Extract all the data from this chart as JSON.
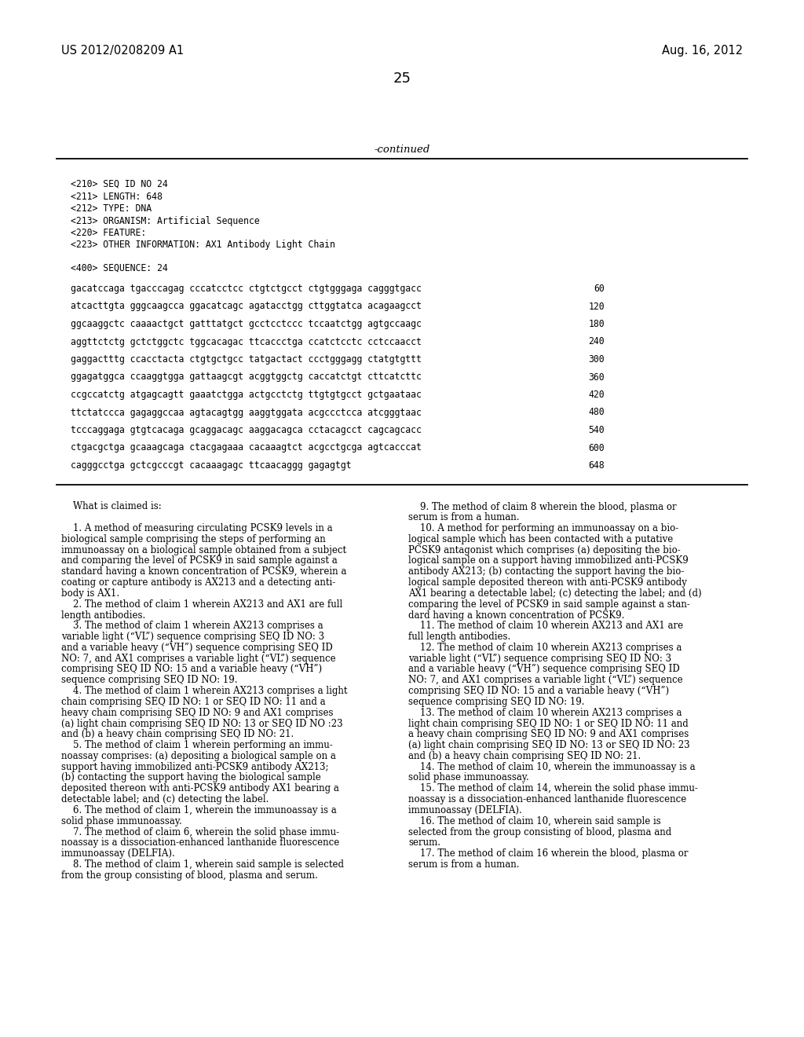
{
  "bg_color": "#ffffff",
  "header_left": "US 2012/0208209 A1",
  "header_right": "Aug. 16, 2012",
  "page_number": "25",
  "continued_label": "-continued",
  "seq_header_lines": [
    "<210> SEQ ID NO 24",
    "<211> LENGTH: 648",
    "<212> TYPE: DNA",
    "<213> ORGANISM: Artificial Sequence",
    "<220> FEATURE:",
    "<223> OTHER INFORMATION: AX1 Antibody Light Chain"
  ],
  "seq_label": "<400> SEQUENCE: 24",
  "sequence_lines": [
    [
      "gacatccaga tgacccagag cccatcctcc ctgtctgcct ctgtgggaga cagggtgacc",
      "60"
    ],
    [
      "atcacttgta gggcaagcca ggacatcagc agatacctgg cttggtatca acagaagcct",
      "120"
    ],
    [
      "ggcaaggctc caaaactgct gatttatgct gcctcctccc tccaatctgg agtgccaagc",
      "180"
    ],
    [
      "aggttctctg gctctggctc tggcacagac ttcaccctga ccatctcctc cctccaacct",
      "240"
    ],
    [
      "gaggactttg ccacctacta ctgtgctgcc tatgactact ccctgggagg ctatgtgttt",
      "300"
    ],
    [
      "ggagatggca ccaaggtgga gattaagcgt acggtggctg caccatctgt cttcatcttc",
      "360"
    ],
    [
      "ccgccatctg atgagcagtt gaaatctgga actgcctctg ttgtgtgcct gctgaataac",
      "420"
    ],
    [
      "ttctatccca gagaggccaa agtacagtgg aaggtggata acgccctcca atcgggtaac",
      "480"
    ],
    [
      "tcccaggaga gtgtcacaga gcaggacagc aaggacagca cctacagcct cagcagcacc",
      "540"
    ],
    [
      "ctgacgctga gcaaagcaga ctacgagaaa cacaaagtct acgcctgcga agtcacccat",
      "600"
    ],
    [
      "cagggcctga gctcgcccgt cacaaagagc ttcaacaggg gagagtgt",
      "648"
    ]
  ],
  "claims_col1": [
    [
      "    What is claimed is:",
      false
    ],
    [
      "    ",
      false
    ],
    [
      "    1. A method of measuring circulating PCSK9 levels in a",
      true
    ],
    [
      "biological sample comprising the steps of performing an",
      false
    ],
    [
      "immunoassay on a biological sample obtained from a subject",
      false
    ],
    [
      "and comparing the level of PCSK9 in said sample against a",
      false
    ],
    [
      "standard having a known concentration of PCSK9, wherein a",
      false
    ],
    [
      "coating or capture antibody is AX213 and a detecting anti-",
      false
    ],
    [
      "body is AX1.",
      false
    ],
    [
      "    2. The method of claim 1 wherein AX213 and AX1 are full",
      true
    ],
    [
      "length antibodies.",
      false
    ],
    [
      "    3. The method of claim 1 wherein AX213 comprises a",
      true
    ],
    [
      "variable light (“VL”) sequence comprising SEQ ID NO: 3",
      false
    ],
    [
      "and a variable heavy (“VH”) sequence comprising SEQ ID",
      false
    ],
    [
      "NO: 7, and AX1 comprises a variable light (“VL”) sequence",
      false
    ],
    [
      "comprising SEQ ID NO: 15 and a variable heavy (“VH”)",
      false
    ],
    [
      "sequence comprising SEQ ID NO: 19.",
      false
    ],
    [
      "    4. The method of claim 1 wherein AX213 comprises a light",
      true
    ],
    [
      "chain comprising SEQ ID NO: 1 or SEQ ID NO: 11 and a",
      false
    ],
    [
      "heavy chain comprising SEQ ID NO: 9 and AX1 comprises",
      false
    ],
    [
      "(a) light chain comprising SEQ ID NO: 13 or SEQ ID NO :23",
      false
    ],
    [
      "and (b) a heavy chain comprising SEQ ID NO: 21.",
      false
    ],
    [
      "    5. The method of claim 1 wherein performing an immu-",
      true
    ],
    [
      "noassay comprises: (a) depositing a biological sample on a",
      false
    ],
    [
      "support having immobilized anti-PCSK9 antibody AX213;",
      false
    ],
    [
      "(b) contacting the support having the biological sample",
      false
    ],
    [
      "deposited thereon with anti-PCSK9 antibody AX1 bearing a",
      false
    ],
    [
      "detectable label; and (c) detecting the label.",
      false
    ],
    [
      "    6. The method of claim 1, wherein the immunoassay is a",
      true
    ],
    [
      "solid phase immunoassay.",
      false
    ],
    [
      "    7. The method of claim 6, wherein the solid phase immu-",
      true
    ],
    [
      "noassay is a dissociation-enhanced lanthanide fluorescence",
      false
    ],
    [
      "immunoassay (DELFIA).",
      false
    ],
    [
      "    8. The method of claim 1, wherein said sample is selected",
      true
    ],
    [
      "from the group consisting of blood, plasma and serum.",
      false
    ]
  ],
  "claims_col2": [
    [
      "    9. The method of claim 8 wherein the blood, plasma or",
      true
    ],
    [
      "serum is from a human.",
      false
    ],
    [
      "    10. A method for performing an immunoassay on a bio-",
      true
    ],
    [
      "logical sample which has been contacted with a putative",
      false
    ],
    [
      "PCSK9 antagonist which comprises (a) depositing the bio-",
      false
    ],
    [
      "logical sample on a support having immobilized anti-PCSK9",
      false
    ],
    [
      "antibody AX213; (b) contacting the support having the bio-",
      false
    ],
    [
      "logical sample deposited thereon with anti-PCSK9 antibody",
      false
    ],
    [
      "AX1 bearing a detectable label; (c) detecting the label; and (d)",
      false
    ],
    [
      "comparing the level of PCSK9 in said sample against a stan-",
      false
    ],
    [
      "dard having a known concentration of PCSK9.",
      false
    ],
    [
      "    11. The method of claim 10 wherein AX213 and AX1 are",
      true
    ],
    [
      "full length antibodies.",
      false
    ],
    [
      "    12. The method of claim 10 wherein AX213 comprises a",
      true
    ],
    [
      "variable light (“VL”) sequence comprising SEQ ID NO: 3",
      false
    ],
    [
      "and a variable heavy (“VH”) sequence comprising SEQ ID",
      false
    ],
    [
      "NO: 7, and AX1 comprises a variable light (“VL”) sequence",
      false
    ],
    [
      "comprising SEQ ID NO: 15 and a variable heavy (“VH”)",
      false
    ],
    [
      "sequence comprising SEQ ID NO: 19.",
      false
    ],
    [
      "    13. The method of claim 10 wherein AX213 comprises a",
      true
    ],
    [
      "light chain comprising SEQ ID NO: 1 or SEQ ID NO: 11 and",
      false
    ],
    [
      "a heavy chain comprising SEQ ID NO: 9 and AX1 comprises",
      false
    ],
    [
      "(a) light chain comprising SEQ ID NO: 13 or SEQ ID NO: 23",
      false
    ],
    [
      "and (b) a heavy chain comprising SEQ ID NO: 21.",
      false
    ],
    [
      "    14. The method of claim 10, wherein the immunoassay is a",
      true
    ],
    [
      "solid phase immunoassay.",
      false
    ],
    [
      "    15. The method of claim 14, wherein the solid phase immu-",
      true
    ],
    [
      "noassay is a dissociation-enhanced lanthanide fluorescence",
      false
    ],
    [
      "immunoassay (DELFIA).",
      false
    ],
    [
      "    16. The method of claim 10, wherein said sample is",
      true
    ],
    [
      "selected from the group consisting of blood, plasma and",
      false
    ],
    [
      "serum.",
      false
    ],
    [
      "    17. The method of claim 16 wherein the blood, plasma or",
      true
    ],
    [
      "serum is from a human.",
      false
    ]
  ]
}
